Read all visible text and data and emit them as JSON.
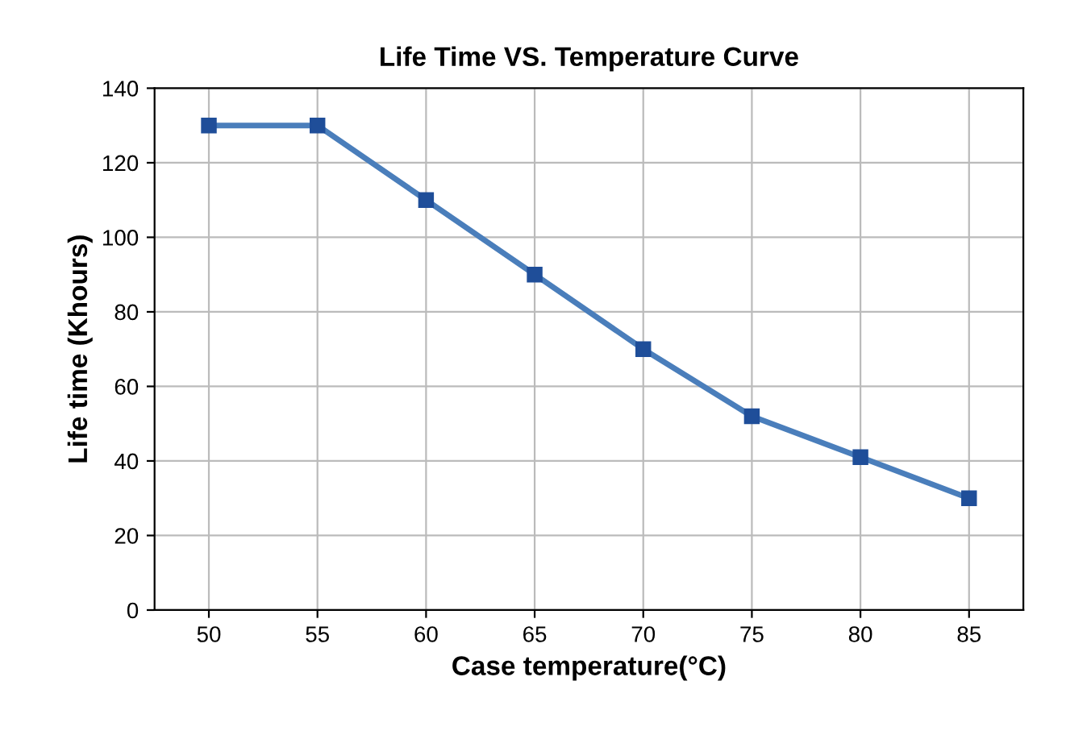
{
  "chart_data": {
    "type": "line",
    "title": "Life Time VS. Temperature Curve",
    "xlabel": "Case temperature(°C)",
    "ylabel": "Life time (Khours)",
    "x": [
      50,
      55,
      60,
      65,
      70,
      75,
      80,
      85
    ],
    "series": [
      {
        "color": "#4a7ebb",
        "values": [
          130,
          130,
          110,
          90,
          70,
          52,
          41,
          30
        ]
      }
    ],
    "xlim": [
      47.5,
      87.5
    ],
    "xticks": [
      50,
      55,
      60,
      65,
      70,
      75,
      80,
      85
    ],
    "ylim": [
      0,
      140
    ],
    "yticks": [
      0,
      20,
      40,
      60,
      80,
      100,
      120,
      140
    ],
    "grid": true,
    "marker": "square",
    "line_style": "solid"
  }
}
